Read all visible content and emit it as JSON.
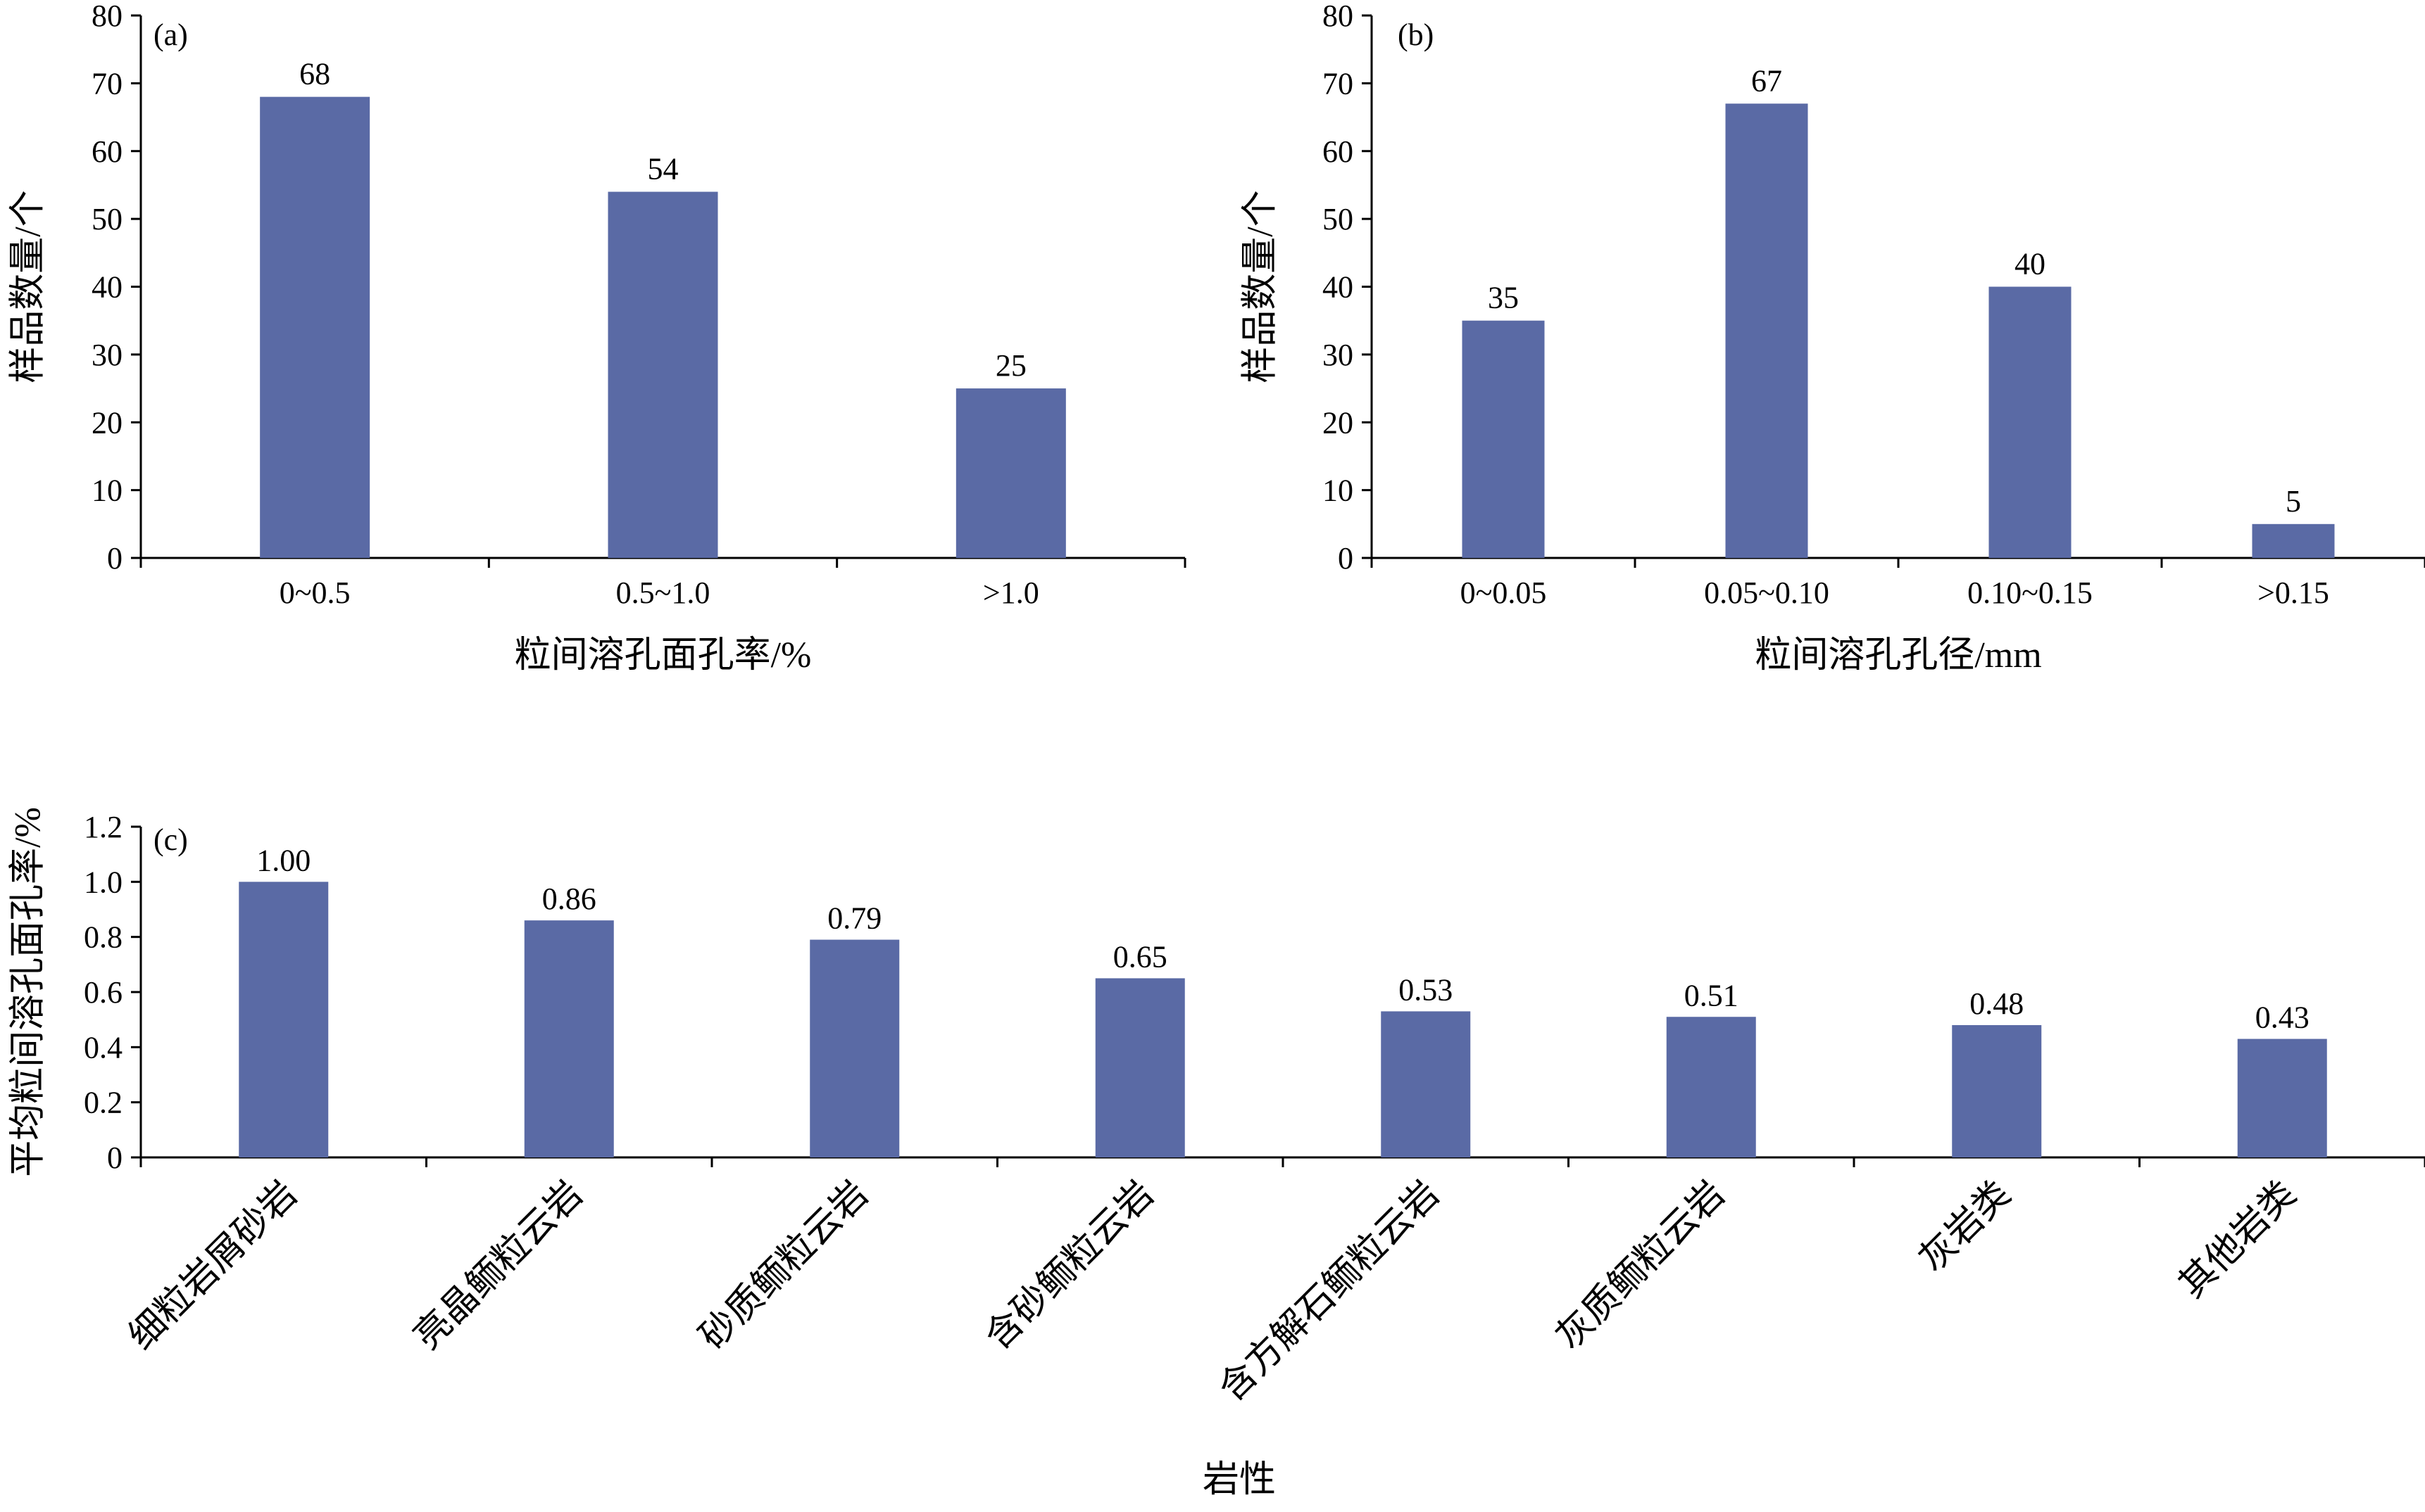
{
  "bar_color": "#5a6aa5",
  "chart_data": [
    {
      "panel": "(a)",
      "type": "bar",
      "categories": [
        "0~0.5",
        "0.5~1.0",
        ">1.0"
      ],
      "values": [
        68,
        54,
        25
      ],
      "value_labels": [
        "68",
        "54",
        "25"
      ],
      "xlabel": "粒间溶孔面孔率/%",
      "ylabel": "样品数量/个",
      "ylim": [
        0,
        80
      ],
      "yticks": [
        "0",
        "10",
        "20",
        "30",
        "40",
        "50",
        "60",
        "70",
        "80"
      ],
      "ytick_values": [
        0,
        10,
        20,
        30,
        40,
        50,
        60,
        70,
        80
      ],
      "grid": false,
      "legend": "none"
    },
    {
      "panel": "(b)",
      "type": "bar",
      "categories": [
        "0~0.05",
        "0.05~0.10",
        "0.10~0.15",
        ">0.15"
      ],
      "values": [
        35,
        67,
        40,
        5
      ],
      "value_labels": [
        "35",
        "67",
        "40",
        "5"
      ],
      "xlabel": "粒间溶孔孔径/mm",
      "ylabel": "样品数量/个",
      "ylim": [
        0,
        80
      ],
      "yticks": [
        "0",
        "10",
        "20",
        "30",
        "40",
        "50",
        "60",
        "70",
        "80"
      ],
      "ytick_values": [
        0,
        10,
        20,
        30,
        40,
        50,
        60,
        70,
        80
      ],
      "grid": false,
      "legend": "none"
    },
    {
      "panel": "(c)",
      "type": "bar",
      "categories": [
        "细粒岩屑砂岩",
        "亮晶鲕粒云岩",
        "砂质鲕粒云岩",
        "含砂鲕粒云岩",
        "含方解石鲕粒云岩",
        "灰质鲕粒云岩",
        "灰岩类",
        "其他岩类"
      ],
      "values": [
        1.0,
        0.86,
        0.79,
        0.65,
        0.53,
        0.51,
        0.48,
        0.43
      ],
      "value_labels": [
        "1.00",
        "0.86",
        "0.79",
        "0.65",
        "0.53",
        "0.51",
        "0.48",
        "0.43"
      ],
      "xlabel": "岩性",
      "ylabel": "平均粒间溶孔面孔率/%",
      "ylim": [
        0,
        1.2
      ],
      "yticks": [
        "0",
        "0.2",
        "0.4",
        "0.6",
        "0.8",
        "1.0",
        "1.2"
      ],
      "ytick_values": [
        0,
        0.2,
        0.4,
        0.6,
        0.8,
        1.0,
        1.2
      ],
      "x_tick_rotation": -45,
      "grid": false,
      "legend": "none"
    }
  ]
}
